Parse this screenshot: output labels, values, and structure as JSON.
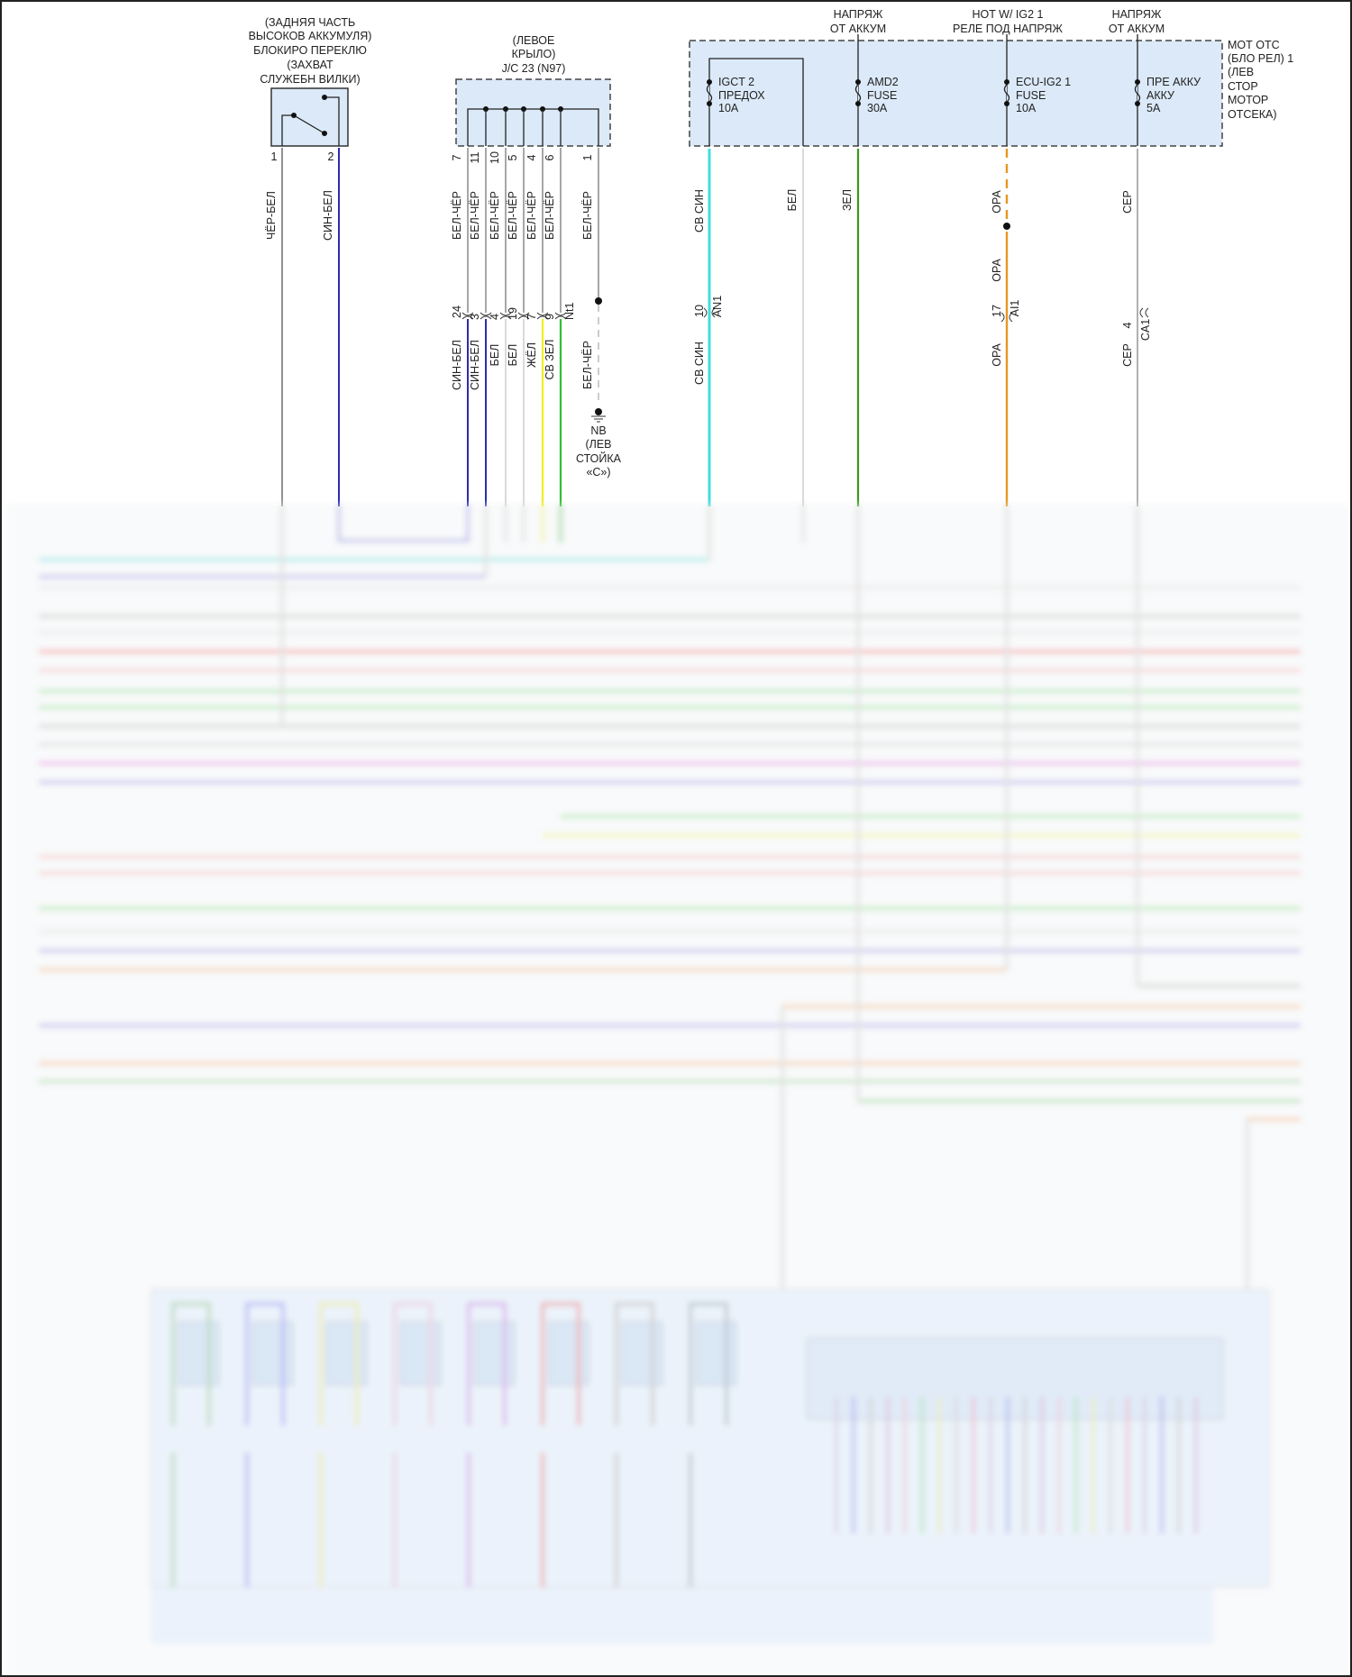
{
  "switch": {
    "title": [
      "(ЗАДНЯЯ ЧАСТЬ",
      "ВЫСОКОВ АККУМУЛЯ)",
      "БЛОКИРО ПЕРЕКЛЮ",
      "(ЗАХВАТ",
      "СЛУЖЕБН ВИЛКИ)"
    ],
    "pins": [
      "1",
      "2"
    ],
    "wires": [
      "ЧЁР-БЕЛ",
      "СИН-БЕЛ"
    ]
  },
  "junction": {
    "title": [
      "(ЛЕВОЕ",
      "КРЫЛО)",
      "J/C 23 (N97)"
    ],
    "pins": [
      "7",
      "11",
      "10",
      "5",
      "4",
      "6",
      "1"
    ],
    "wires": [
      "БЕЛ-ЧЁР",
      "БЕЛ-ЧЁР",
      "БЕЛ-ЧЁР",
      "БЕЛ-ЧЁР",
      "БЕЛ-ЧЁР",
      "БЕЛ-ЧЁР",
      "БЕЛ-ЧЁР"
    ],
    "lower_pins": [
      "24",
      "3",
      "4",
      "19",
      "7",
      "9",
      "Nt1"
    ],
    "lower_wires": [
      "СИН-БЕЛ",
      "СИН-БЕЛ",
      "БЕЛ",
      "БЕЛ",
      "ЖЁЛ",
      "СВ ЗЕЛ",
      "БЕЛ-ЧЁР"
    ]
  },
  "ground": {
    "label": [
      "NB",
      "(ЛЕВ",
      "СТОЙКА",
      "«С»)"
    ]
  },
  "fusebox": {
    "title": [
      "МОТ ОТС",
      "(БЛО РЕЛ) 1",
      "(ЛЕВ",
      "СТОР",
      "МОТОР",
      "ОТСЕКА)"
    ],
    "supplies": [
      [
        "НАПРЯЖ",
        "ОТ АККУМ"
      ],
      [
        "HOT W/ IG2 1",
        "РЕЛЕ ПОД НАПРЯЖ"
      ],
      [
        "НАПРЯЖ",
        "ОТ АККУМ"
      ]
    ],
    "fuses": [
      [
        "IGCT 2",
        "ПРЕДОХ",
        "10A"
      ],
      [
        "AMD2",
        "FUSE",
        "30A"
      ],
      [
        "ECU-IG2 1",
        "FUSE",
        "10A"
      ],
      [
        "ПРЕ АККУ",
        "АККУ",
        "5A"
      ]
    ],
    "wires": [
      "СВ СИН",
      "БЕЛ",
      "ЗЕЛ",
      "ОРА",
      "СЕР"
    ],
    "orange_mid": "ОРА",
    "connectors": {
      "an1": {
        "pin": "10",
        "name": "AN1",
        "wire": "СВ СИН"
      },
      "ai1": {
        "pin": "17",
        "name": "AI1",
        "wire": "ОРА"
      },
      "ca1": {
        "pin": "4",
        "name": "CA1",
        "wire": "СЕР"
      }
    }
  },
  "colors": {
    "light_blue": "#3fdede",
    "blue": "#2b2bb0",
    "green": "#2fc02f",
    "dark_green": "#3a9a1a",
    "orange": "#e8961e",
    "yellow": "#eeee20",
    "gray": "#9a9a9a",
    "white_wire": "#d0d0d0",
    "component_fill": "#dbe9f8"
  }
}
